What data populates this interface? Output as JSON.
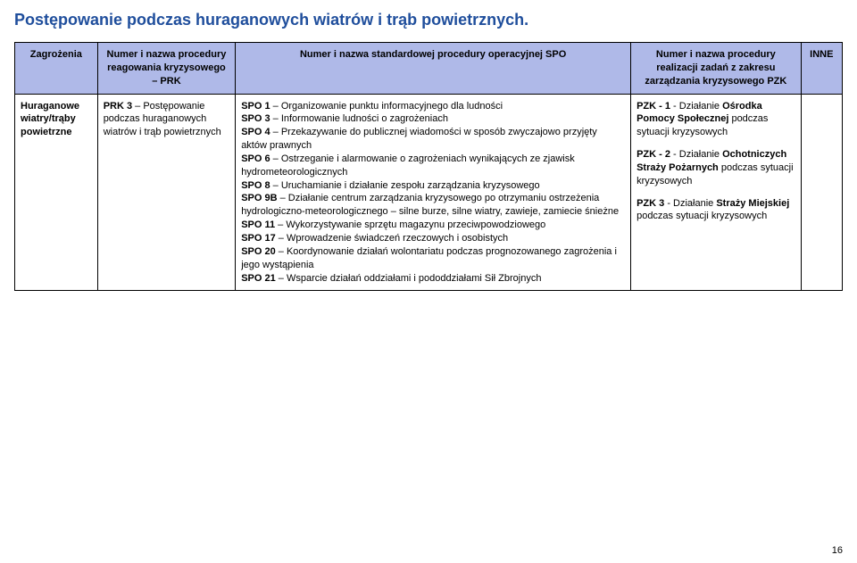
{
  "title": "Postępowanie podczas huraganowych wiatrów i trąb powietrznych.",
  "header": {
    "col1": "Zagrożenia",
    "col2": "Numer i nazwa procedury reagowania kryzysowego – PRK",
    "col3": "Numer i nazwa standardowej procedury operacyjnej SPO",
    "col4": "Numer i nazwa procedury realizacji zadań z zakresu zarządzania kryzysowego PZK",
    "col5": "INNE"
  },
  "row": {
    "zagrozenia_line1": "Huraganowe",
    "zagrozenia_line2": "wiatry/trąby",
    "zagrozenia_line3": "powietrzne",
    "prk_bold": "PRK 3",
    "prk_rest": " – Postępowanie podczas huraganowych wiatrów i trąb powietrznych",
    "spo": [
      {
        "code": "SPO 1",
        "text": " – Organizowanie punktu informacyjnego dla ludności"
      },
      {
        "code": "SPO 3",
        "text": " – Informowanie ludności o zagrożeniach"
      },
      {
        "code": "SPO 4",
        "text": " – Przekazywanie do publicznej wiadomości w sposób zwyczajowo przyjęty aktów prawnych"
      },
      {
        "code": "SPO 6",
        "text": " – Ostrzeganie i alarmowanie o zagrożeniach wynikających ze zjawisk hydrometeorologicznych"
      },
      {
        "code": "SPO 8",
        "text": " – Uruchamianie i działanie zespołu zarządzania kryzysowego"
      },
      {
        "code": "SPO 9B",
        "text": " – Działanie centrum zarządzania kryzysowego po otrzymaniu ostrzeżenia hydrologiczno-meteorologicznego – silne burze, silne wiatry, zawieje, zamiecie śnieżne"
      },
      {
        "code": "SPO 11",
        "text": " – Wykorzystywanie sprzętu magazynu przeciwpowodziowego"
      },
      {
        "code": "SPO 17",
        "text": " – Wprowadzenie świadczeń rzeczowych i osobistych"
      },
      {
        "code": "SPO 20",
        "text": " – Koordynowanie działań wolontariatu podczas prognozowanego zagrożenia i jego wystąpienia"
      },
      {
        "code": "SPO 21",
        "text": " – Wsparcie działań oddziałami i pododdziałami Sił Zbrojnych"
      }
    ],
    "pzk": [
      {
        "code": "PZK - 1",
        "mid": " - Działanie ",
        "bold2": "Ośrodka Pomocy Społecznej",
        "tail": " podczas sytuacji kryzysowych"
      },
      {
        "code": "PZK - 2",
        "mid": " - Działanie ",
        "bold2": "Ochotniczych Straży  Pożarnych",
        "tail": " podczas sytuacji kryzysowych"
      },
      {
        "code": "PZK 3",
        "mid": " - Działanie ",
        "bold2": "Straży Miejskiej",
        "tail": " podczas sytuacji kryzysowych"
      }
    ],
    "inne": ""
  },
  "pageNumber": "16",
  "colors": {
    "header_bg": "#afb9e8",
    "title_color": "#1f4e9c",
    "border": "#000000",
    "text": "#000000",
    "page_bg": "#ffffff"
  }
}
